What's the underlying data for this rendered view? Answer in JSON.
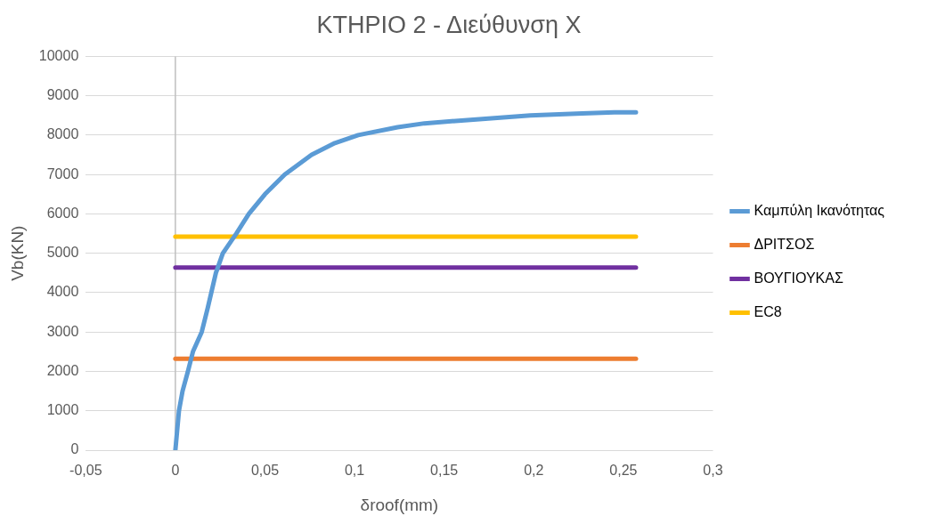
{
  "chart_data": {
    "type": "line",
    "title": "ΚΤΗΡΙΟ 2 - Διεύθυνση Χ",
    "xlabel": "δroof(mm)",
    "ylabel": "Vb(KN)",
    "xlim": [
      -0.05,
      0.3
    ],
    "xticks": [
      {
        "value": -0.05,
        "label": "-0,05"
      },
      {
        "value": 0,
        "label": "0"
      },
      {
        "value": 0.05,
        "label": "0,05"
      },
      {
        "value": 0.1,
        "label": "0,1"
      },
      {
        "value": 0.15,
        "label": "0,15"
      },
      {
        "value": 0.2,
        "label": "0,2"
      },
      {
        "value": 0.25,
        "label": "0,25"
      },
      {
        "value": 0.3,
        "label": "0,3"
      }
    ],
    "ylim": [
      0,
      10000
    ],
    "yticks": [
      0,
      1000,
      2000,
      3000,
      4000,
      5000,
      6000,
      7000,
      8000,
      9000,
      10000
    ],
    "grid": "y",
    "legend": "right",
    "marker": "none",
    "line_style": "solid",
    "series": [
      {
        "name": "Καμπύλη Ικανότητας",
        "color": "#5b9bd5",
        "x": [
          0,
          0.002,
          0.004,
          0.007,
          0.0098,
          0.0147,
          0.018,
          0.0226,
          0.0265,
          0.031,
          0.034,
          0.041,
          0.05,
          0.061,
          0.076,
          0.089,
          0.102,
          0.124,
          0.139,
          0.168,
          0.198,
          0.227,
          0.245,
          0.257
        ],
        "values": [
          0,
          1000,
          1500,
          2000,
          2500,
          3000,
          3600,
          4500,
          5000,
          5300,
          5500,
          6000,
          6500,
          7000,
          7500,
          7800,
          8000,
          8200,
          8300,
          8400,
          8500,
          8550,
          8580,
          8580
        ]
      },
      {
        "name": "ΔΡΙΤΣΟΣ",
        "color": "#ed7d31",
        "x": [
          0,
          0.257
        ],
        "values": [
          2320,
          2320
        ]
      },
      {
        "name": "ΒΟΥΓΙΟΥΚΑΣ",
        "color": "#7030a0",
        "x": [
          0,
          0.257
        ],
        "values": [
          4640,
          4640
        ]
      },
      {
        "name": "EC8",
        "color": "#ffc000",
        "x": [
          0,
          0.257
        ],
        "values": [
          5420,
          5420
        ]
      }
    ]
  }
}
